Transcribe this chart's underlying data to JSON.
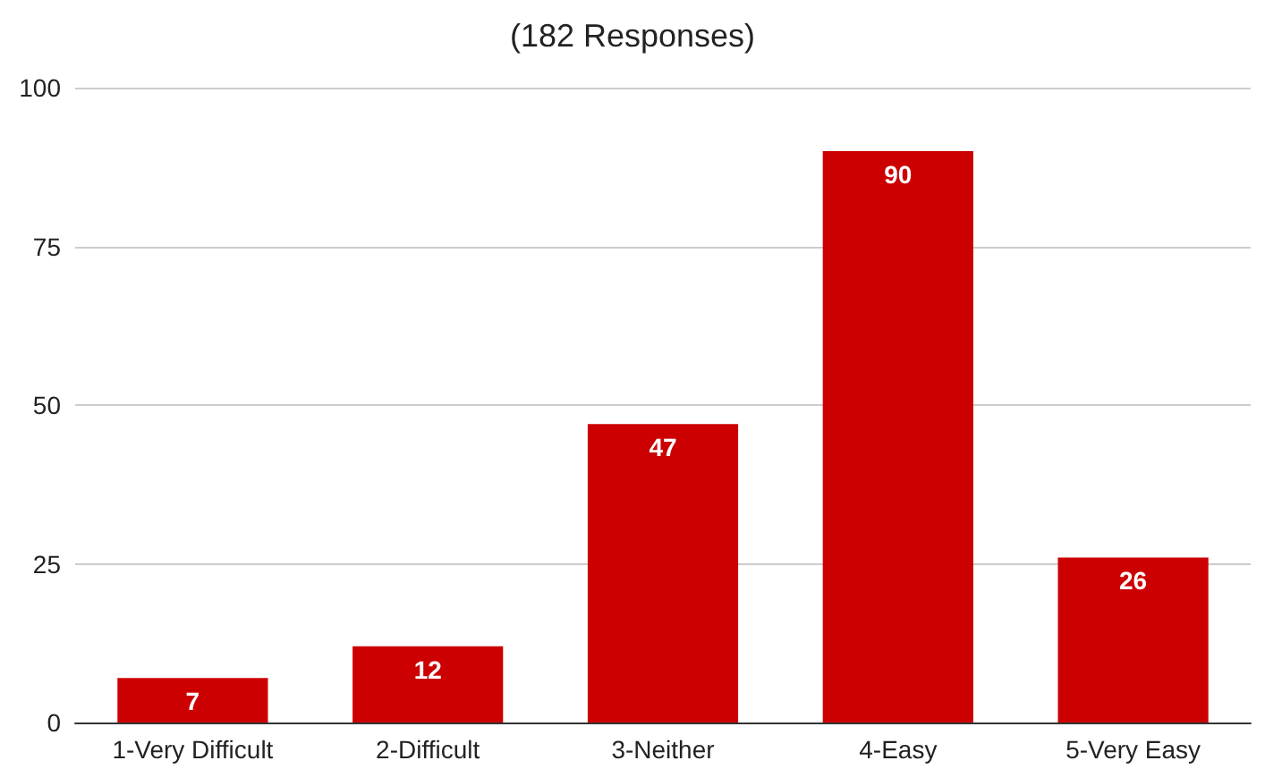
{
  "chart_data": {
    "type": "bar",
    "title": "(182 Responses)",
    "categories": [
      "1-Very Difficult",
      "2-Difficult",
      "3-Neither",
      "4-Easy",
      "5-Very Easy"
    ],
    "values": [
      7,
      12,
      47,
      90,
      26
    ],
    "color": "#cc0000",
    "ylim": [
      0,
      100
    ],
    "yticks": [
      0,
      25,
      50,
      75,
      100
    ],
    "grid": "y",
    "data_labels": true
  }
}
